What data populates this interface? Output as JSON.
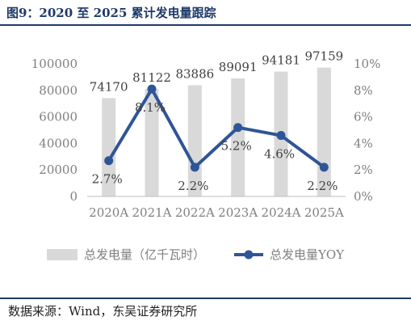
{
  "figure": {
    "title": "图9：2020 至 2025 累计发电量跟踪",
    "source": "数据来源：Wind，东吴证券研究所"
  },
  "colors": {
    "bar": "#d9d9d9",
    "line": "#2f5597",
    "title": "#1f3a68",
    "tick_text": "#7f7f7f",
    "label_text": "#404040"
  },
  "chart_data": {
    "type": "bar",
    "categories": [
      "2020A",
      "2021A",
      "2022A",
      "2023A",
      "2024A",
      "2025A"
    ],
    "series": [
      {
        "name": "总发电量（亿千瓦时）",
        "type": "bar",
        "axis": "left",
        "values": [
          74170,
          81122,
          83886,
          89091,
          94181,
          97159
        ],
        "labels": [
          "74170",
          "81122",
          "83886",
          "89091",
          "94181",
          "97159"
        ]
      },
      {
        "name": "总发电量YOY",
        "type": "line",
        "axis": "right",
        "values": [
          2.7,
          8.1,
          2.2,
          5.2,
          4.6,
          2.2
        ],
        "labels": [
          "2.7%",
          "8.1%",
          "2.2%",
          "5.2%",
          "4.6%",
          "2.2%"
        ]
      }
    ],
    "y_left": {
      "min": 0,
      "max": 100000,
      "ticks": [
        "0",
        "20000",
        "40000",
        "60000",
        "80000",
        "100000"
      ]
    },
    "y_right": {
      "min": 0,
      "max": 10,
      "ticks": [
        "0%",
        "2%",
        "4%",
        "6%",
        "8%",
        "10%"
      ]
    },
    "grid": false,
    "legend": "bottom"
  }
}
